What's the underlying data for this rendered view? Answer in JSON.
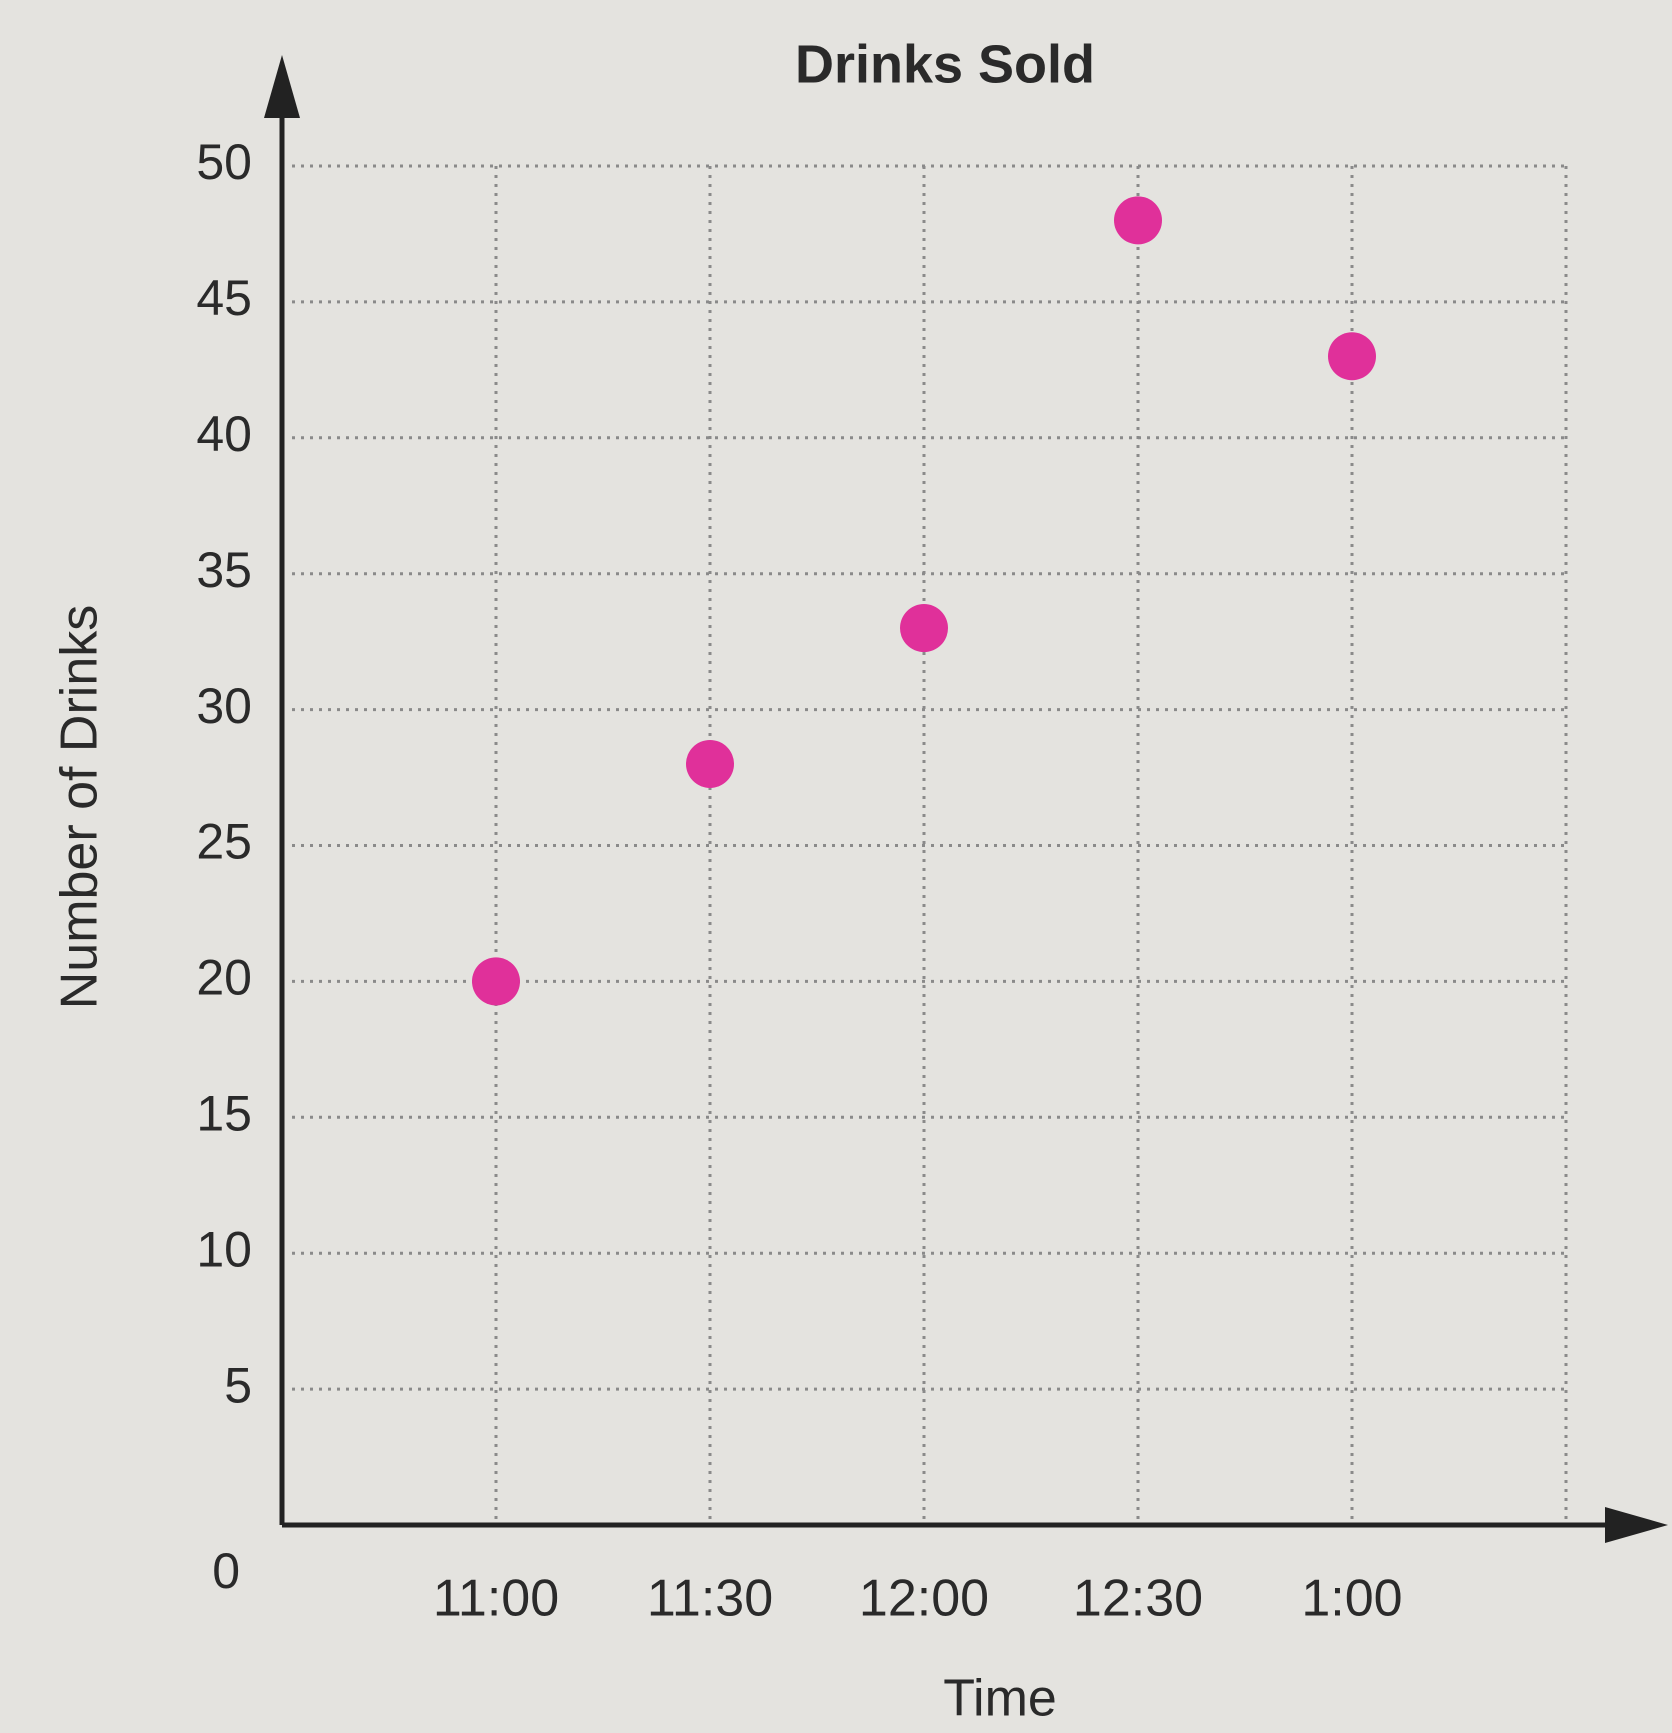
{
  "chart_data": {
    "type": "scatter",
    "title": "Drinks Sold",
    "x_label": "Time",
    "y_label": "Number of Drinks",
    "categories": [
      "11:00",
      "11:30",
      "12:00",
      "12:30",
      "1:00"
    ],
    "values": [
      20,
      28,
      33,
      48,
      43
    ],
    "color": "#e0309a",
    "ylim": [
      0,
      50
    ],
    "yticks": [
      0,
      5,
      10,
      15,
      20,
      25,
      30,
      35,
      40,
      45,
      50
    ],
    "grid": true
  }
}
